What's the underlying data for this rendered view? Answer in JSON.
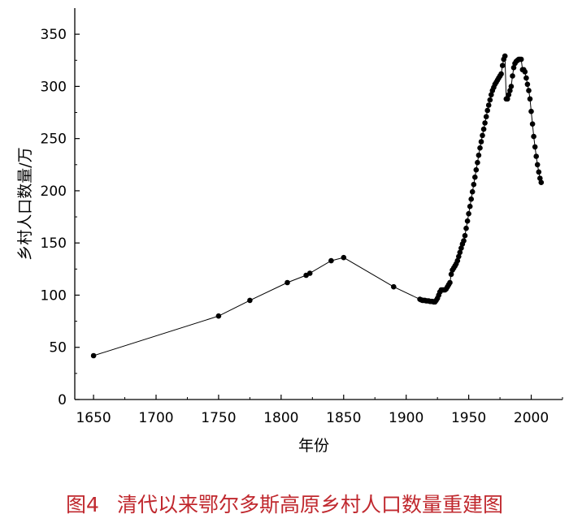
{
  "caption": {
    "figure_number": "图4",
    "text": "清代以来鄂尔多斯高原乡村人口数量重建图"
  },
  "chart_data": {
    "type": "line",
    "xlabel": "年份",
    "ylabel": "乡村人口数量/万",
    "xlim": [
      1635,
      2025
    ],
    "ylim": [
      0,
      375
    ],
    "xticks": [
      1650,
      1700,
      1750,
      1800,
      1850,
      1900,
      1950,
      2000
    ],
    "yticks": [
      0,
      50,
      100,
      150,
      200,
      250,
      300,
      350
    ],
    "grid": false,
    "legend": "none",
    "series": [
      {
        "color": "#000000",
        "points": [
          [
            1650,
            42
          ],
          [
            1750,
            80
          ],
          [
            1775,
            95
          ],
          [
            1805,
            112
          ],
          [
            1820,
            119
          ],
          [
            1823,
            121
          ],
          [
            1840,
            133
          ],
          [
            1850,
            136
          ],
          [
            1890,
            108
          ],
          [
            1911,
            96
          ],
          [
            1912,
            95.5
          ],
          [
            1913,
            95
          ],
          [
            1914,
            95
          ],
          [
            1915,
            95
          ],
          [
            1916,
            94.5
          ],
          [
            1917,
            94.5
          ],
          [
            1918,
            94.5
          ],
          [
            1919,
            94
          ],
          [
            1920,
            94
          ],
          [
            1921,
            94
          ],
          [
            1922,
            93.5
          ],
          [
            1923,
            93.5
          ],
          [
            1924,
            95
          ],
          [
            1925,
            97
          ],
          [
            1926,
            100
          ],
          [
            1927,
            103
          ],
          [
            1928,
            105
          ],
          [
            1929,
            105
          ],
          [
            1930,
            105
          ],
          [
            1931,
            105
          ],
          [
            1932,
            106
          ],
          [
            1933,
            108
          ],
          [
            1934,
            110
          ],
          [
            1935,
            112
          ],
          [
            1936,
            120
          ],
          [
            1937,
            124
          ],
          [
            1938,
            126
          ],
          [
            1939,
            128
          ],
          [
            1940,
            130
          ],
          [
            1941,
            133
          ],
          [
            1942,
            137
          ],
          [
            1943,
            141
          ],
          [
            1944,
            145
          ],
          [
            1945,
            149
          ],
          [
            1946,
            152
          ],
          [
            1947,
            157
          ],
          [
            1948,
            164
          ],
          [
            1949,
            171
          ],
          [
            1950,
            178
          ],
          [
            1951,
            185
          ],
          [
            1952,
            192
          ],
          [
            1953,
            199
          ],
          [
            1954,
            206
          ],
          [
            1955,
            213
          ],
          [
            1956,
            220
          ],
          [
            1957,
            227
          ],
          [
            1958,
            234
          ],
          [
            1959,
            241
          ],
          [
            1960,
            247
          ],
          [
            1961,
            253
          ],
          [
            1962,
            259
          ],
          [
            1963,
            265
          ],
          [
            1964,
            271
          ],
          [
            1965,
            277
          ],
          [
            1966,
            282
          ],
          [
            1967,
            287
          ],
          [
            1968,
            292
          ],
          [
            1969,
            296
          ],
          [
            1970,
            299
          ],
          [
            1971,
            302
          ],
          [
            1972,
            304
          ],
          [
            1973,
            306
          ],
          [
            1974,
            308
          ],
          [
            1975,
            310
          ],
          [
            1976,
            312
          ],
          [
            1977,
            320
          ],
          [
            1978,
            326
          ],
          [
            1979,
            329
          ],
          [
            1980,
            288
          ],
          [
            1981,
            288
          ],
          [
            1982,
            292
          ],
          [
            1983,
            296
          ],
          [
            1984,
            300
          ],
          [
            1985,
            310
          ],
          [
            1986,
            318
          ],
          [
            1987,
            322
          ],
          [
            1988,
            324
          ],
          [
            1989,
            325
          ],
          [
            1990,
            326
          ],
          [
            1991,
            326
          ],
          [
            1992,
            326
          ],
          [
            1993,
            316
          ],
          [
            1994,
            316
          ],
          [
            1995,
            314
          ],
          [
            1996,
            308
          ],
          [
            1997,
            302
          ],
          [
            1998,
            296
          ],
          [
            1999,
            288
          ],
          [
            2000,
            276
          ],
          [
            2001,
            264
          ],
          [
            2002,
            252
          ],
          [
            2003,
            242
          ],
          [
            2004,
            233
          ],
          [
            2005,
            225
          ],
          [
            2006,
            218
          ],
          [
            2007,
            212
          ],
          [
            2008,
            208
          ]
        ]
      }
    ]
  }
}
